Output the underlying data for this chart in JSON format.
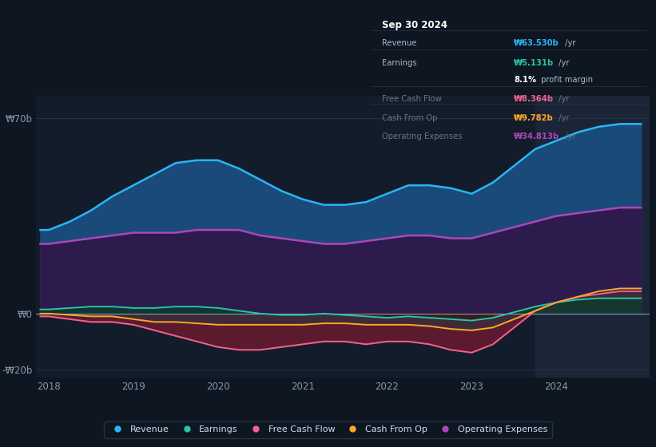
{
  "bg_color": "#0e1621",
  "plot_bg_color": "#131c2b",
  "highlight_bg": "#1a2538",
  "title": "Sep 30 2024",
  "x": [
    2017.9,
    2018.0,
    2018.25,
    2018.5,
    2018.75,
    2019.0,
    2019.25,
    2019.5,
    2019.75,
    2020.0,
    2020.25,
    2020.5,
    2020.75,
    2021.0,
    2021.25,
    2021.5,
    2021.75,
    2022.0,
    2022.25,
    2022.5,
    2022.75,
    2023.0,
    2023.25,
    2023.5,
    2023.75,
    2024.0,
    2024.25,
    2024.5,
    2024.75,
    2025.0
  ],
  "revenue": [
    30,
    30,
    33,
    37,
    42,
    46,
    50,
    54,
    55,
    55,
    52,
    48,
    44,
    41,
    39,
    39,
    40,
    43,
    46,
    46,
    45,
    43,
    47,
    53,
    59,
    62,
    65,
    67,
    68,
    68
  ],
  "operating_expenses": [
    25,
    25,
    26,
    27,
    28,
    29,
    29,
    29,
    30,
    30,
    30,
    28,
    27,
    26,
    25,
    25,
    26,
    27,
    28,
    28,
    27,
    27,
    29,
    31,
    33,
    35,
    36,
    37,
    38,
    38
  ],
  "earnings": [
    1.5,
    1.5,
    2,
    2.5,
    2.5,
    2,
    2,
    2.5,
    2.5,
    2,
    1,
    0,
    -0.5,
    -0.5,
    0,
    -0.5,
    -1,
    -1.5,
    -1,
    -1.5,
    -2,
    -2.5,
    -1.5,
    0.5,
    2.5,
    4,
    5,
    5.5,
    5.5,
    5.5
  ],
  "free_cash_flow": [
    -1,
    -1,
    -2,
    -3,
    -3,
    -4,
    -6,
    -8,
    -10,
    -12,
    -13,
    -13,
    -12,
    -11,
    -10,
    -10,
    -11,
    -10,
    -10,
    -11,
    -13,
    -14,
    -11,
    -5,
    1,
    4,
    6,
    7,
    8,
    8
  ],
  "cash_from_op": [
    0,
    0,
    -0.5,
    -1,
    -1,
    -2,
    -3,
    -3,
    -3.5,
    -4,
    -4,
    -4,
    -4,
    -4,
    -3.5,
    -3.5,
    -4,
    -4,
    -4,
    -4.5,
    -5.5,
    -6,
    -5,
    -2,
    1,
    4,
    6,
    8,
    9,
    9
  ],
  "revenue_color": "#29b6f6",
  "revenue_fill": "#1a4a7a",
  "op_exp_color": "#ab47bc",
  "op_exp_fill": "#2d1b4e",
  "earnings_color": "#26c6a6",
  "earnings_fill_pos": "#0d3b2e",
  "earnings_fill_neg": "#3b1a1a",
  "fcf_color": "#f06292",
  "fcf_fill": "#5c1a2e",
  "cfop_color": "#ffa726",
  "cfop_fill": "#5c3a10",
  "zero_line_color": "#8899aa",
  "grid_color": "#2a3a4a",
  "tick_color": "#8899aa",
  "legend_bg": "#0e1621",
  "legend_border": "#2a3a4a",
  "table_bg": "#000000",
  "table_border": "#333344",
  "table_title": "Sep 30 2024",
  "table_rows": [
    {
      "label": "Revenue",
      "label_color": "#aabbcc",
      "value": "₩63.530b",
      "value_color": "#29b6f6",
      "suffix": " /yr",
      "suffix_color": "#aabbcc"
    },
    {
      "label": "Earnings",
      "label_color": "#aabbcc",
      "value": "₩5.131b",
      "value_color": "#26c6a6",
      "suffix": " /yr",
      "suffix_color": "#aabbcc"
    },
    {
      "label": "",
      "label_color": "#aabbcc",
      "value": "8.1%",
      "value_color": "#ffffff",
      "suffix": " profit margin",
      "suffix_color": "#aabbcc"
    },
    {
      "label": "Free Cash Flow",
      "label_color": "#667788",
      "value": "₩8.364b",
      "value_color": "#f06292",
      "suffix": " /yr",
      "suffix_color": "#667788"
    },
    {
      "label": "Cash From Op",
      "label_color": "#667788",
      "value": "₩9.782b",
      "value_color": "#ffa726",
      "suffix": " /yr",
      "suffix_color": "#667788"
    },
    {
      "label": "Operating Expenses",
      "label_color": "#667788",
      "value": "₩34.813b",
      "value_color": "#ab47bc",
      "suffix": " /yr",
      "suffix_color": "#667788"
    }
  ],
  "highlight_start": 2023.75,
  "xlim_left": 2017.85,
  "xlim_right": 2025.1,
  "ylim_bottom": -23,
  "ylim_top": 78,
  "ytick_vals": [
    -20,
    0,
    70
  ],
  "ytick_labels": [
    "-₩20b",
    "₩0",
    "₩70b"
  ],
  "xtick_vals": [
    2018,
    2019,
    2020,
    2021,
    2022,
    2023,
    2024
  ],
  "xtick_labels": [
    "2018",
    "2019",
    "2020",
    "2021",
    "2022",
    "2023",
    "2024"
  ]
}
